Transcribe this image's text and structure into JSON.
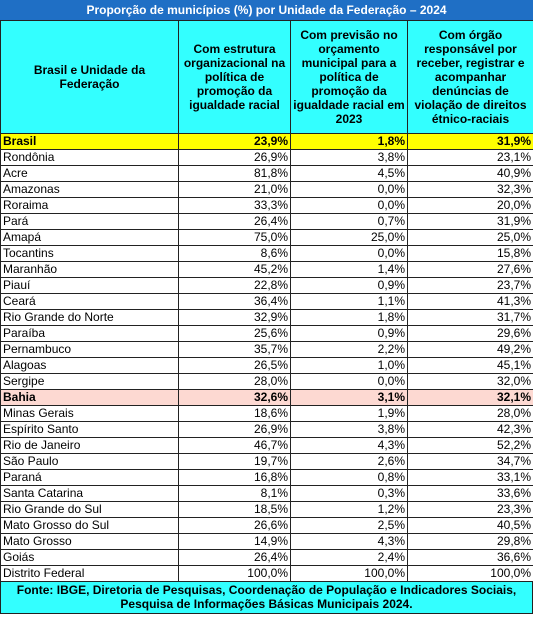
{
  "title": "Proporção de municípios (%) por Unidade da Federação – 2024",
  "table": {
    "header": [
      "Brasil e Unidade da Federação",
      "Com estrutura organizacional na política de promoção da igualdade racial",
      "Com previsão no orçamento municipal para a política de promoção da igualdade racial em 2023",
      "Com órgão responsável por receber, registrar e acompanhar denúncias de violação de direitos étnico-raciais"
    ],
    "rows": [
      [
        "Brasil",
        "23,9%",
        "1,8%",
        "31,9%"
      ],
      [
        "Rondônia",
        "26,9%",
        "3,8%",
        "23,1%"
      ],
      [
        "Acre",
        "81,8%",
        "4,5%",
        "40,9%"
      ],
      [
        "Amazonas",
        "21,0%",
        "0,0%",
        "32,3%"
      ],
      [
        "Roraima",
        "33,3%",
        "0,0%",
        "20,0%"
      ],
      [
        "Pará",
        "26,4%",
        "0,7%",
        "31,9%"
      ],
      [
        "Amapá",
        "75,0%",
        "25,0%",
        "25,0%"
      ],
      [
        "Tocantins",
        "8,6%",
        "0,0%",
        "15,8%"
      ],
      [
        "Maranhão",
        "45,2%",
        "1,4%",
        "27,6%"
      ],
      [
        "Piauí",
        "22,8%",
        "0,9%",
        "23,7%"
      ],
      [
        "Ceará",
        "36,4%",
        "1,1%",
        "41,3%"
      ],
      [
        "Rio Grande do Norte",
        "32,9%",
        "1,8%",
        "31,7%"
      ],
      [
        "Paraíba",
        "25,6%",
        "0,9%",
        "29,6%"
      ],
      [
        "Pernambuco",
        "35,7%",
        "2,2%",
        "49,2%"
      ],
      [
        "Alagoas",
        "26,5%",
        "1,0%",
        "45,1%"
      ],
      [
        "Sergipe",
        "28,0%",
        "0,0%",
        "32,0%"
      ],
      [
        "Bahia",
        "32,6%",
        "3,1%",
        "32,1%"
      ],
      [
        "Minas Gerais",
        "18,6%",
        "1,9%",
        "28,0%"
      ],
      [
        "Espírito Santo",
        "26,9%",
        "3,8%",
        "42,3%"
      ],
      [
        "Rio de Janeiro",
        "46,7%",
        "4,3%",
        "52,2%"
      ],
      [
        "São Paulo",
        "19,7%",
        "2,6%",
        "34,7%"
      ],
      [
        "Paraná",
        "16,8%",
        "0,8%",
        "33,1%"
      ],
      [
        "Santa Catarina",
        "8,1%",
        "0,3%",
        "33,6%"
      ],
      [
        "Rio Grande do Sul",
        "18,5%",
        "1,2%",
        "23,3%"
      ],
      [
        "Mato Grosso do Sul",
        "26,6%",
        "2,5%",
        "40,5%"
      ],
      [
        "Mato Grosso",
        "14,9%",
        "4,3%",
        "29,8%"
      ],
      [
        "Goiás",
        "26,4%",
        "2,4%",
        "36,6%"
      ],
      [
        "Distrito Federal",
        "100,0%",
        "100,0%",
        "100,0%"
      ]
    ]
  },
  "footer": "Fonte: IBGE, Diretoria de Pesquisas, Coordenação de População e Indicadores Sociais, Pesquisa de Informações Básicas Municipais 2024."
}
